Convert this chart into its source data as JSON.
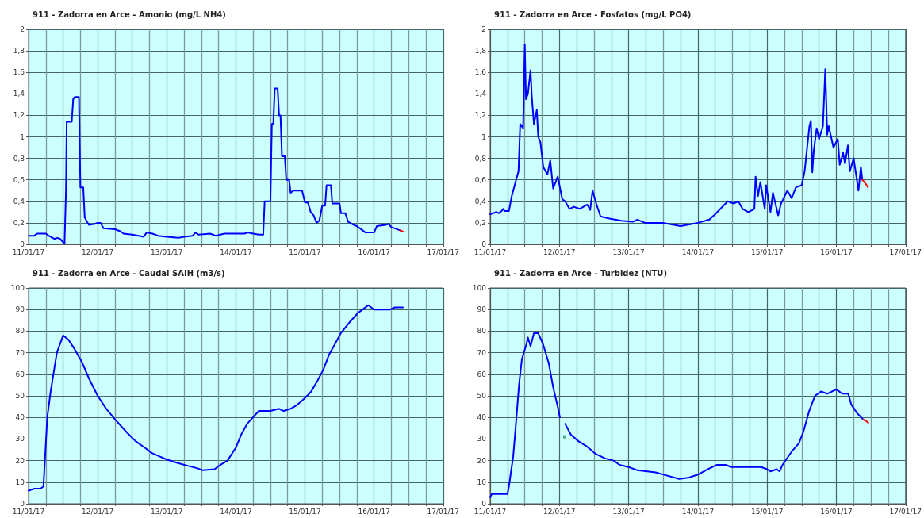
{
  "chart_data": [
    {
      "type": "line",
      "title": "911 - Zadorra en Arce - Amonio (mg/L NH4)",
      "grid": true,
      "marker": "none",
      "xlim": [
        "--01-11",
        "--01-17"
      ],
      "xticks": [
        {
          "value": "--01-11",
          "label": "11/01/17"
        },
        {
          "value": "--01-11T06:00",
          "label": null
        },
        {
          "value": "--01-11T12:00",
          "label": null
        },
        {
          "value": "--01-11T18:00",
          "label": null
        },
        {
          "value": "--01-12",
          "label": "12/01/17"
        },
        {
          "value": "--01-12T06:00",
          "label": null
        },
        {
          "value": "--01-12T12:00",
          "label": null
        },
        {
          "value": "--01-12T18:00",
          "label": null
        },
        {
          "value": "--01-13",
          "label": "13/01/17"
        },
        {
          "value": "--01-13T06:00",
          "label": null
        },
        {
          "value": "--01-13T12:00",
          "label": null
        },
        {
          "value": "--01-13T18:00",
          "label": null
        },
        {
          "value": "--01-14",
          "label": "14/01/17"
        },
        {
          "value": "--01-14T06:00",
          "label": null
        },
        {
          "value": "--01-14T12:00",
          "label": null
        },
        {
          "value": "--01-14T18:00",
          "label": null
        },
        {
          "value": "--01-15",
          "label": "15/01/17"
        },
        {
          "value": "--01-15T06:00",
          "label": null
        },
        {
          "value": "--01-15T12:00",
          "label": null
        },
        {
          "value": "--01-15T18:00",
          "label": null
        },
        {
          "value": "--01-16",
          "label": "16/01/17"
        },
        {
          "value": "--01-16T06:00",
          "label": null
        },
        {
          "value": "--01-16T12:00",
          "label": null
        },
        {
          "value": "--01-16T18:00",
          "label": null
        },
        {
          "value": "--01-17",
          "label": "17/01/17"
        }
      ],
      "ylim": [
        0,
        2
      ],
      "yticks": [
        0,
        {
          "value": 0.2,
          "label": "0,2"
        },
        {
          "value": 0.4,
          "label": "0,4"
        },
        {
          "value": 0.6,
          "label": "0,6"
        },
        {
          "value": 0.8,
          "label": "0,8"
        },
        1,
        {
          "value": 1.2,
          "label": "1,2"
        },
        {
          "value": 1.4,
          "label": "1,4"
        },
        {
          "value": 1.6,
          "label": "1,6"
        },
        {
          "value": 1.8,
          "label": "1,8"
        },
        2
      ],
      "series": [
        {
          "color": "#0000ff",
          "x": [
            "--01-11T00:00",
            "--01-11T02:00",
            "--01-11T03:00",
            "--01-11T06:00",
            "--01-11T07:00",
            "--01-11T09:00",
            "--01-11T10:00",
            "--01-11T11:00",
            "--01-11T12:00",
            "--01-11T12:30",
            "--01-11T13:00",
            "--01-11T13:15",
            "--01-11T15:00",
            "--01-11T15:30",
            "--01-11T16:00",
            "--01-11T17:30",
            "--01-11T18:00",
            "--01-11T19:00",
            "--01-11T19:30",
            "--01-11T20:30",
            "--01-11T21:00",
            "--01-11T23:00",
            "--01-12T00:00",
            "--01-12T01:00",
            "--01-12T02:00",
            "--01-12T06:00",
            "--01-12T08:00",
            "--01-12T09:00",
            "--01-12T12:00",
            "--01-12T16:00",
            "--01-12T17:00",
            "--01-12T19:00",
            "--01-12T21:00",
            "--01-13T00:00",
            "--01-13T04:00",
            "--01-13T06:00",
            "--01-13T09:00",
            "--01-13T10:00",
            "--01-13T11:00",
            "--01-13T15:00",
            "--01-13T17:00",
            "--01-13T20:00",
            "--01-14T00:00",
            "--01-14T03:00",
            "--01-14T04:00",
            "--01-14T06:00",
            "--01-14T08:00",
            "--01-14T09:30",
            "--01-14T10:00",
            "--01-14T12:00",
            "--01-14T12:30",
            "--01-14T13:00",
            "--01-14T13:30",
            "--01-14T14:30",
            "--01-14T15:00",
            "--01-14T15:30",
            "--01-14T16:00",
            "--01-14T17:00",
            "--01-14T17:30",
            "--01-14T18:30",
            "--01-14T19:00",
            "--01-14T20:00",
            "--01-14T23:00",
            "--01-15T00:00",
            "--01-15T01:00",
            "--01-15T02:00",
            "--01-15T03:00",
            "--01-15T04:00",
            "--01-15T05:00",
            "--01-15T06:00",
            "--01-15T07:00",
            "--01-15T07:30",
            "--01-15T09:00",
            "--01-15T09:30",
            "--01-15T12:00",
            "--01-15T12:30",
            "--01-15T14:00",
            "--01-15T15:00",
            "--01-15T17:00",
            "--01-15T18:00",
            "--01-15T20:00",
            "--01-15T21:00",
            "--01-16T00:00",
            "--01-16T01:00",
            "--01-16T04:00",
            "--01-16T05:00",
            "--01-16T06:00",
            "--01-16T07:00",
            "--01-16T09:00"
          ],
          "values": [
            0.08,
            0.08,
            0.1,
            0.1,
            0.08,
            0.05,
            0.06,
            0.05,
            0.02,
            0.01,
            0.5,
            1.14,
            1.14,
            1.35,
            1.37,
            1.37,
            0.53,
            0.53,
            0.25,
            0.2,
            0.18,
            0.19,
            0.2,
            0.2,
            0.15,
            0.14,
            0.12,
            0.1,
            0.09,
            0.07,
            0.11,
            0.1,
            0.08,
            0.07,
            0.06,
            0.07,
            0.08,
            0.11,
            0.09,
            0.1,
            0.08,
            0.1,
            0.1,
            0.1,
            0.11,
            0.1,
            0.09,
            0.09,
            0.4,
            0.4,
            1.12,
            1.12,
            1.45,
            1.45,
            1.2,
            1.2,
            0.82,
            0.82,
            0.6,
            0.6,
            0.48,
            0.5,
            0.5,
            0.39,
            0.39,
            0.3,
            0.27,
            0.2,
            0.22,
            0.36,
            0.36,
            0.55,
            0.55,
            0.38,
            0.38,
            0.29,
            0.29,
            0.21,
            0.18,
            0.17,
            0.13,
            0.11,
            0.11,
            0.17,
            0.18,
            0.19,
            0.16,
            0.15,
            0.13
          ]
        },
        {
          "color": "#ff0000",
          "x": [
            "--01-16T09:00",
            "--01-16T10:00"
          ],
          "values": [
            0.13,
            0.12
          ]
        }
      ]
    },
    {
      "type": "line",
      "title": "911 - Zadorra en Arce - Fosfatos (mg/L PO4)",
      "grid": true,
      "marker": "none",
      "xlim": [
        "--01-11",
        "--01-17"
      ],
      "xticks": [
        {
          "value": "--01-11",
          "label": "11/01/17"
        },
        {
          "value": "--01-11T06:00",
          "label": null
        },
        {
          "value": "--01-11T12:00",
          "label": null
        },
        {
          "value": "--01-11T18:00",
          "label": null
        },
        {
          "value": "--01-12",
          "label": "12/01/17"
        },
        {
          "value": "--01-12T06:00",
          "label": null
        },
        {
          "value": "--01-12T12:00",
          "label": null
        },
        {
          "value": "--01-12T18:00",
          "label": null
        },
        {
          "value": "--01-13",
          "label": "13/01/17"
        },
        {
          "value": "--01-13T06:00",
          "label": null
        },
        {
          "value": "--01-13T12:00",
          "label": null
        },
        {
          "value": "--01-13T18:00",
          "label": null
        },
        {
          "value": "--01-14",
          "label": "14/01/17"
        },
        {
          "value": "--01-14T06:00",
          "label": null
        },
        {
          "value": "--01-14T12:00",
          "label": null
        },
        {
          "value": "--01-14T18:00",
          "label": null
        },
        {
          "value": "--01-15",
          "label": "15/01/17"
        },
        {
          "value": "--01-15T06:00",
          "label": null
        },
        {
          "value": "--01-15T12:00",
          "label": null
        },
        {
          "value": "--01-15T18:00",
          "label": null
        },
        {
          "value": "--01-16",
          "label": "16/01/17"
        },
        {
          "value": "--01-16T06:00",
          "label": null
        },
        {
          "value": "--01-16T12:00",
          "label": null
        },
        {
          "value": "--01-16T18:00",
          "label": null
        },
        {
          "value": "--01-17",
          "label": "17/01/17"
        }
      ],
      "ylim": [
        0,
        2
      ],
      "yticks": [
        0,
        {
          "value": 0.2,
          "label": "0,2"
        },
        {
          "value": 0.4,
          "label": "0,4"
        },
        {
          "value": 0.6,
          "label": "0,6"
        },
        {
          "value": 0.8,
          "label": "0,8"
        },
        1,
        {
          "value": 1.2,
          "label": "1,2"
        },
        {
          "value": 1.4,
          "label": "1,4"
        },
        {
          "value": 1.6,
          "label": "1,6"
        },
        {
          "value": 1.8,
          "label": "1,8"
        },
        2
      ],
      "series": [
        {
          "color": "#0000ff",
          "x": [
            "--01-11T00:00",
            "--01-11T01:00",
            "--01-11T02:00",
            "--01-11T03:00",
            "--01-11T04:00",
            "--01-11T04:30",
            "--01-11T05:00",
            "--01-11T06:30",
            "--01-11T07:30",
            "--01-11T09:00",
            "--01-11T09:50",
            "--01-11T10:25",
            "--01-11T11:25",
            "--01-11T12:00",
            "--01-11T12:25",
            "--01-11T13:05",
            "--01-11T14:00",
            "--01-11T14:25",
            "--01-11T15:10",
            "--01-11T16:10",
            "--01-11T16:40",
            "--01-11T17:25",
            "--01-11T18:25",
            "--01-11T19:50",
            "--01-11T20:50",
            "--01-11T21:50",
            "--01-11T23:25",
            "--01-12T01:00",
            "--01-12T02:00",
            "--01-12T03:30",
            "--01-12T05:00",
            "--01-12T07:00",
            "--01-12T09:40",
            "--01-12T10:40",
            "--01-12T11:30",
            "--01-12T12:45",
            "--01-12T14:15",
            "--01-12T17:20",
            "--01-12T21:30",
            "--01-13T01:30",
            "--01-13T03:00",
            "--01-13T05:40",
            "--01-13T11:50",
            "--01-13T18:00",
            "--01-14T00:00",
            "--01-14T04:00",
            "--01-14T06:00",
            "--01-14T10:20",
            "--01-14T12:25",
            "--01-14T14:00",
            "--01-14T15:30",
            "--01-14T17:30",
            "--01-14T19:35",
            "--01-14T20:00",
            "--01-14T20:50",
            "--01-14T21:40",
            "--01-14T23:10",
            "--01-14T23:40",
            "--01-15T01:10",
            "--01-15T02:00",
            "--01-15T03:50",
            "--01-15T04:50",
            "--01-15T07:00",
            "--01-15T08:30",
            "--01-15T10:00",
            "--01-15T12:00",
            "--01-15T13:00",
            "--01-15T14:40",
            "--01-15T15:10",
            "--01-15T15:40",
            "--01-15T16:10",
            "--01-15T17:10",
            "--01-15T18:00",
            "--01-15T19:20",
            "--01-15T20:10",
            "--01-15T20:50",
            "--01-15T21:20",
            "--01-15T23:00",
            "--01-16T00:30",
            "--01-16T01:10",
            "--01-16T02:20",
            "--01-16T03:00",
            "--01-16T04:00",
            "--01-16T04:40",
            "--01-16T06:00",
            "--01-16T07:40",
            "--01-16T08:30",
            "--01-16T09:00"
          ],
          "values": [
            0.28,
            0.29,
            0.3,
            0.29,
            0.31,
            0.33,
            0.31,
            0.31,
            0.45,
            0.6,
            0.68,
            1.12,
            1.08,
            1.86,
            1.35,
            1.4,
            1.62,
            1.38,
            1.12,
            1.25,
            1.0,
            0.95,
            0.72,
            0.65,
            0.78,
            0.52,
            0.63,
            0.42,
            0.4,
            0.33,
            0.35,
            0.33,
            0.37,
            0.32,
            0.5,
            0.38,
            0.26,
            0.24,
            0.22,
            0.21,
            0.23,
            0.2,
            0.2,
            0.17,
            0.2,
            0.23,
            0.28,
            0.4,
            0.38,
            0.4,
            0.33,
            0.3,
            0.33,
            0.63,
            0.45,
            0.58,
            0.33,
            0.55,
            0.3,
            0.48,
            0.27,
            0.38,
            0.5,
            0.43,
            0.53,
            0.55,
            0.68,
            1.1,
            1.15,
            0.67,
            0.87,
            1.08,
            0.98,
            1.1,
            1.63,
            1.02,
            1.1,
            0.9,
            0.98,
            0.74,
            0.85,
            0.75,
            0.92,
            0.68,
            0.8,
            0.5,
            0.72,
            0.6
          ]
        },
        {
          "color": "#ff0000",
          "x": [
            "--01-16T09:00",
            "--01-16T10:00",
            "--01-16T11:00"
          ],
          "values": [
            0.6,
            0.57,
            0.53
          ]
        }
      ]
    },
    {
      "type": "line",
      "title": "911 - Zadorra en Arce - Caudal SAIH (m3/s)",
      "grid": true,
      "marker": "none",
      "xlim": [
        "--01-11",
        "--01-17"
      ],
      "xticks": [
        {
          "value": "--01-11",
          "label": "11/01/17"
        },
        {
          "value": "--01-11T06:00",
          "label": null
        },
        {
          "value": "--01-11T12:00",
          "label": null
        },
        {
          "value": "--01-11T18:00",
          "label": null
        },
        {
          "value": "--01-12",
          "label": "12/01/17"
        },
        {
          "value": "--01-12T06:00",
          "label": null
        },
        {
          "value": "--01-12T12:00",
          "label": null
        },
        {
          "value": "--01-12T18:00",
          "label": null
        },
        {
          "value": "--01-13",
          "label": "13/01/17"
        },
        {
          "value": "--01-13T06:00",
          "label": null
        },
        {
          "value": "--01-13T12:00",
          "label": null
        },
        {
          "value": "--01-13T18:00",
          "label": null
        },
        {
          "value": "--01-14",
          "label": "14/01/17"
        },
        {
          "value": "--01-14T06:00",
          "label": null
        },
        {
          "value": "--01-14T12:00",
          "label": null
        },
        {
          "value": "--01-14T18:00",
          "label": null
        },
        {
          "value": "--01-15",
          "label": "15/01/17"
        },
        {
          "value": "--01-15T06:00",
          "label": null
        },
        {
          "value": "--01-15T12:00",
          "label": null
        },
        {
          "value": "--01-15T18:00",
          "label": null
        },
        {
          "value": "--01-16",
          "label": "16/01/17"
        },
        {
          "value": "--01-16T06:00",
          "label": null
        },
        {
          "value": "--01-16T12:00",
          "label": null
        },
        {
          "value": "--01-16T18:00",
          "label": null
        },
        {
          "value": "--01-17",
          "label": "17/01/17"
        }
      ],
      "ylim": [
        0,
        100
      ],
      "yticks": [
        0,
        10,
        20,
        30,
        40,
        50,
        60,
        70,
        80,
        90,
        100
      ],
      "series": [
        {
          "color": "#0000ff",
          "x": [
            "--01-11T00:00",
            "--01-11T02:00",
            "--01-11T04:10",
            "--01-11T05:10",
            "--01-11T06:30",
            "--01-11T07:40",
            "--01-11T09:50",
            "--01-11T12:00",
            "--01-11T13:50",
            "--01-11T15:50",
            "--01-11T18:25",
            "--01-11T21:00",
            "--01-12T00:00",
            "--01-12T03:00",
            "--01-12T06:05",
            "--01-12T10:10",
            "--01-12T13:10",
            "--01-12T16:20",
            "--01-12T18:50",
            "--01-12T21:20",
            "--01-13T00:00",
            "--01-13T03:25",
            "--01-13T07:30",
            "--01-13T10:30",
            "--01-13T12:30",
            "--01-13T16:35",
            "--01-13T18:35",
            "--01-13T21:05",
            "--01-14T00:00",
            "--01-14T01:50",
            "--01-14T03:55",
            "--01-14T05:55",
            "--01-14T08:00",
            "--01-14T12:00",
            "--01-14T15:00",
            "--01-14T16:35",
            "--01-14T19:00",
            "--01-14T21:00",
            "--01-15T00:00",
            "--01-15T02:10",
            "--01-15T04:20",
            "--01-15T06:20",
            "--01-15T08:20",
            "--01-15T10:25",
            "--01-15T12:25",
            "--01-15T15:25",
            "--01-15T18:30",
            "--01-15T20:30",
            "--01-15T22:00",
            "--01-16T00:00",
            "--01-16T05:35",
            "--01-16T07:10",
            "--01-16T10:00"
          ],
          "values": [
            6,
            7,
            7,
            8,
            40,
            52,
            70,
            78,
            76,
            72,
            66,
            58,
            50,
            44,
            39,
            33,
            29,
            26,
            23.5,
            22,
            20.5,
            19,
            17.5,
            16.5,
            15.5,
            16,
            18,
            20,
            26,
            32,
            37,
            40,
            43,
            43,
            44,
            43,
            44,
            45.5,
            49,
            52,
            57,
            62,
            69,
            74,
            79,
            84,
            88.5,
            90.5,
            92,
            90,
            90,
            91,
            91
          ]
        }
      ]
    },
    {
      "type": "line",
      "title": "911 - Zadorra en Arce - Turbidez (NTU)",
      "grid": true,
      "marker": "none",
      "xlim": [
        "--01-11",
        "--01-17"
      ],
      "xticks": [
        {
          "value": "--01-11",
          "label": "11/01/17"
        },
        {
          "value": "--01-11T06:00",
          "label": null
        },
        {
          "value": "--01-11T12:00",
          "label": null
        },
        {
          "value": "--01-11T18:00",
          "label": null
        },
        {
          "value": "--01-12",
          "label": "12/01/17"
        },
        {
          "value": "--01-12T06:00",
          "label": null
        },
        {
          "value": "--01-12T12:00",
          "label": null
        },
        {
          "value": "--01-12T18:00",
          "label": null
        },
        {
          "value": "--01-13",
          "label": "13/01/17"
        },
        {
          "value": "--01-13T06:00",
          "label": null
        },
        {
          "value": "--01-13T12:00",
          "label": null
        },
        {
          "value": "--01-13T18:00",
          "label": null
        },
        {
          "value": "--01-14",
          "label": "14/01/17"
        },
        {
          "value": "--01-14T06:00",
          "label": null
        },
        {
          "value": "--01-14T12:00",
          "label": null
        },
        {
          "value": "--01-14T18:00",
          "label": null
        },
        {
          "value": "--01-15",
          "label": "15/01/17"
        },
        {
          "value": "--01-15T06:00",
          "label": null
        },
        {
          "value": "--01-15T12:00",
          "label": null
        },
        {
          "value": "--01-15T18:00",
          "label": null
        },
        {
          "value": "--01-16",
          "label": "16/01/17"
        },
        {
          "value": "--01-16T06:00",
          "label": null
        },
        {
          "value": "--01-16T12:00",
          "label": null
        },
        {
          "value": "--01-16T18:00",
          "label": null
        },
        {
          "value": "--01-17",
          "label": "17/01/17"
        }
      ],
      "ylim": [
        0,
        100
      ],
      "yticks": [
        0,
        10,
        20,
        30,
        40,
        50,
        60,
        70,
        80,
        90,
        100
      ],
      "series": [
        {
          "color": "#0000ff",
          "x": [
            "--01-11T00:00",
            "--01-11T00:35",
            "--01-11T06:00",
            "--01-11T06:30",
            "--01-11T08:00",
            "--01-11T09:00",
            "--01-11T10:00",
            "--01-11T11:00",
            "--01-11T12:35",
            "--01-11T13:05",
            "--01-11T14:00",
            "--01-11T15:10",
            "--01-11T16:40",
            "--01-11T18:20",
            "--01-11T20:20",
            "--01-11T21:50",
            "--01-11T23:25",
            "--01-12T00:10",
            "--01-12T01:00",
            "--01-12T02:00",
            "--01-12T04:00",
            "--01-12T06:35",
            "--01-12T09:35",
            "--01-12T12:40",
            "--01-12T15:50",
            "--01-12T18:50",
            "--01-12T20:50",
            "--01-13T00:00",
            "--01-13T03:05",
            "--01-13T09:20",
            "--01-13T13:25",
            "--01-13T17:30",
            "--01-13T20:35",
            "--01-14T00:00",
            "--01-14T03:30",
            "--01-14T06:30",
            "--01-14T09:35",
            "--01-14T11:40",
            "--01-14T17:50",
            "--01-14T21:55",
            "--01-15T00:00",
            "--01-15T01:10",
            "--01-15T03:20",
            "--01-15T04:20",
            "--01-15T05:20",
            "--01-15T08:25",
            "--01-15T11:00",
            "--01-15T12:30",
            "--01-15T14:35",
            "--01-15T16:35",
            "--01-15T18:40",
            "--01-15T20:50",
            "--01-16T00:00",
            "--01-16T02:00",
            "--01-16T04:05",
            "--01-16T05:10",
            "--01-16T07:10",
            "--01-16T09:20"
          ],
          "values": [
            3,
            4.5,
            4.5,
            8,
            22,
            38,
            55,
            67,
            74,
            77,
            73,
            79,
            79,
            74,
            65,
            54,
            45,
            40,
            null,
            37,
            32,
            29,
            26.5,
            23,
            21,
            20,
            18,
            17,
            15.5,
            14.5,
            13,
            11.5,
            12,
            13.5,
            16,
            18,
            18,
            17,
            17,
            17,
            16,
            15,
            16,
            15,
            18,
            24,
            28,
            33,
            43,
            50,
            52,
            51,
            53,
            51,
            51,
            46,
            42,
            39
          ]
        },
        {
          "color": "#ff0000",
          "x": [
            "--01-16T09:20",
            "--01-16T10:10",
            "--01-16T11:05"
          ],
          "values": [
            39,
            38.5,
            37.5
          ]
        },
        {
          "type": "scatter",
          "marker": "square",
          "color": "#339966",
          "x": [
            "--01-12T01:50"
          ],
          "values": [
            31
          ]
        }
      ]
    }
  ]
}
